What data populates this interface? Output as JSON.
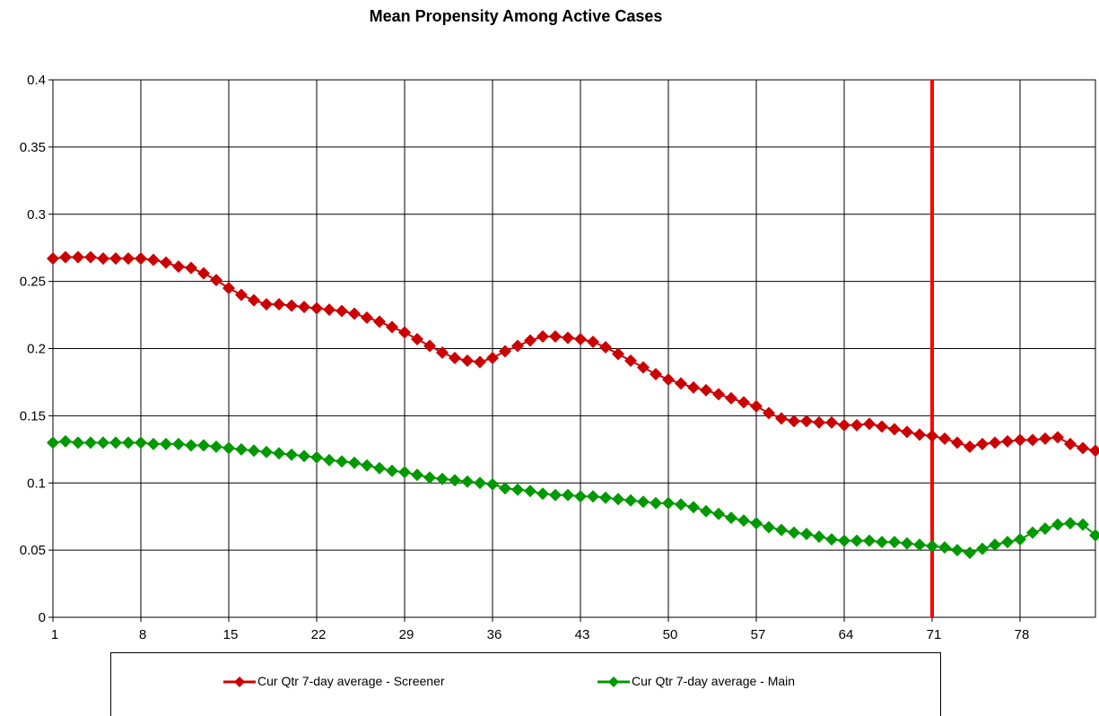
{
  "chart_data": {
    "type": "line",
    "title": "Mean Propensity Among Active Cases",
    "x_ticks": [
      "1",
      "8",
      "15",
      "22",
      "29",
      "36",
      "43",
      "50",
      "57",
      "64",
      "71",
      "78"
    ],
    "y_ticks": [
      "0",
      "0.05",
      "0.1",
      "0.15",
      "0.2",
      "0.25",
      "0.3",
      "0.35",
      "0.4"
    ],
    "ylim": [
      0,
      0.4
    ],
    "xlim": [
      1,
      84
    ],
    "grid": true,
    "legend_position": "bottom",
    "reference_line": {
      "x": 71,
      "color": "#ff0000"
    },
    "x": [
      1,
      2,
      3,
      4,
      5,
      6,
      7,
      8,
      9,
      10,
      11,
      12,
      13,
      14,
      15,
      16,
      17,
      18,
      19,
      20,
      21,
      22,
      23,
      24,
      25,
      26,
      27,
      28,
      29,
      30,
      31,
      32,
      33,
      34,
      35,
      36,
      37,
      38,
      39,
      40,
      41,
      42,
      43,
      44,
      45,
      46,
      47,
      48,
      49,
      50,
      51,
      52,
      53,
      54,
      55,
      56,
      57,
      58,
      59,
      60,
      61,
      62,
      63,
      64,
      65,
      66,
      67,
      68,
      69,
      70,
      71,
      72,
      73,
      74,
      75,
      76,
      77,
      78,
      79,
      80,
      81,
      82,
      83,
      84
    ],
    "series": [
      {
        "name": "Cur Qtr 7-day average - Screener",
        "color": "#cc0000",
        "values": [
          0.267,
          0.268,
          0.268,
          0.268,
          0.267,
          0.267,
          0.267,
          0.267,
          0.266,
          0.264,
          0.261,
          0.26,
          0.256,
          0.251,
          0.245,
          0.24,
          0.236,
          0.233,
          0.233,
          0.232,
          0.231,
          0.23,
          0.229,
          0.228,
          0.226,
          0.223,
          0.22,
          0.216,
          0.212,
          0.207,
          0.202,
          0.197,
          0.193,
          0.191,
          0.19,
          0.193,
          0.198,
          0.202,
          0.206,
          0.209,
          0.209,
          0.208,
          0.207,
          0.205,
          0.201,
          0.196,
          0.191,
          0.186,
          0.181,
          0.177,
          0.174,
          0.171,
          0.169,
          0.166,
          0.163,
          0.16,
          0.157,
          0.152,
          0.148,
          0.146,
          0.146,
          0.145,
          0.145,
          0.143,
          0.143,
          0.144,
          0.142,
          0.14,
          0.138,
          0.136,
          0.135,
          0.133,
          0.13,
          0.127,
          0.129,
          0.13,
          0.131,
          0.132,
          0.132,
          0.133,
          0.134,
          0.129,
          0.126,
          0.124
        ]
      },
      {
        "name": "Cur Qtr 7-day average - Main",
        "color": "#009900",
        "values": [
          0.13,
          0.131,
          0.13,
          0.13,
          0.13,
          0.13,
          0.13,
          0.13,
          0.129,
          0.129,
          0.129,
          0.128,
          0.128,
          0.127,
          0.126,
          0.125,
          0.124,
          0.123,
          0.122,
          0.121,
          0.12,
          0.119,
          0.117,
          0.116,
          0.115,
          0.113,
          0.111,
          0.109,
          0.108,
          0.106,
          0.104,
          0.103,
          0.102,
          0.101,
          0.1,
          0.099,
          0.096,
          0.095,
          0.094,
          0.092,
          0.091,
          0.091,
          0.09,
          0.09,
          0.089,
          0.088,
          0.087,
          0.086,
          0.085,
          0.085,
          0.084,
          0.082,
          0.079,
          0.077,
          0.074,
          0.072,
          0.07,
          0.067,
          0.065,
          0.063,
          0.062,
          0.06,
          0.058,
          0.057,
          0.057,
          0.057,
          0.056,
          0.056,
          0.055,
          0.054,
          0.053,
          0.052,
          0.05,
          0.048,
          0.051,
          0.054,
          0.056,
          0.058,
          0.063,
          0.066,
          0.069,
          0.07,
          0.069,
          0.061
        ]
      }
    ]
  }
}
